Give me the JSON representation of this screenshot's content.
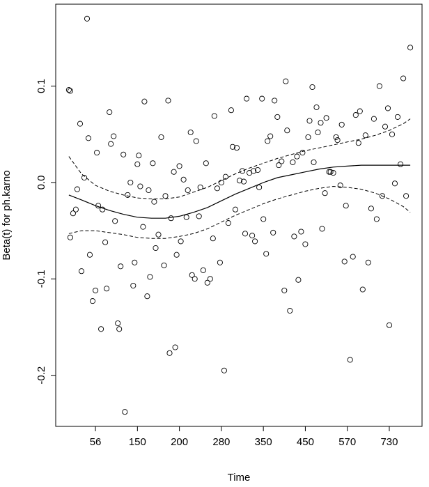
{
  "chart_data": {
    "type": "scatter",
    "xlabel": "Time",
    "ylabel": "Beta(t) for ph.karno",
    "x_ticks": [
      {
        "pos": 10,
        "label": "56"
      },
      {
        "pos": 25,
        "label": "150"
      },
      {
        "pos": 40,
        "label": "200"
      },
      {
        "pos": 55,
        "label": "280"
      },
      {
        "pos": 70,
        "label": "350"
      },
      {
        "pos": 85,
        "label": "450"
      },
      {
        "pos": 100,
        "label": "570"
      },
      {
        "pos": 115,
        "label": "730"
      }
    ],
    "y_ticks": [
      -0.2,
      -0.1,
      0.0,
      0.1
    ],
    "y_tick_labels": [
      "-0.2",
      "-0.1",
      "0.0",
      "0.1"
    ],
    "xlim": [
      -4.2,
      126.7
    ],
    "ylim": [
      -0.253,
      0.185
    ],
    "points": [
      [
        0.5,
        0.096
      ],
      [
        1,
        0.095
      ],
      [
        1,
        -0.057
      ],
      [
        2,
        -0.032
      ],
      [
        3,
        -0.028
      ],
      [
        3.5,
        -0.007
      ],
      [
        4.5,
        0.061
      ],
      [
        5,
        -0.092
      ],
      [
        6,
        0.005
      ],
      [
        7,
        0.17
      ],
      [
        7.5,
        0.046
      ],
      [
        8,
        -0.075
      ],
      [
        9,
        -0.123
      ],
      [
        10,
        -0.112
      ],
      [
        10.5,
        0.031
      ],
      [
        11,
        -0.024
      ],
      [
        12,
        -0.152
      ],
      [
        12.5,
        -0.028
      ],
      [
        13.5,
        -0.062
      ],
      [
        14,
        -0.11
      ],
      [
        15,
        0.073
      ],
      [
        15.5,
        0.04
      ],
      [
        16.5,
        0.048
      ],
      [
        17,
        -0.04
      ],
      [
        18,
        -0.146
      ],
      [
        18.5,
        -0.152
      ],
      [
        19,
        -0.087
      ],
      [
        20,
        0.029
      ],
      [
        20.5,
        -0.238
      ],
      [
        21.5,
        -0.013
      ],
      [
        22.5,
        0.0
      ],
      [
        23.5,
        -0.107
      ],
      [
        24,
        -0.083
      ],
      [
        25,
        0.019
      ],
      [
        25.5,
        0.028
      ],
      [
        26,
        -0.004
      ],
      [
        27,
        -0.046
      ],
      [
        27.5,
        0.084
      ],
      [
        28.5,
        -0.118
      ],
      [
        29,
        -0.008
      ],
      [
        29.5,
        -0.098
      ],
      [
        30.5,
        0.02
      ],
      [
        31,
        -0.02
      ],
      [
        31.5,
        -0.068
      ],
      [
        32.5,
        -0.054
      ],
      [
        33.5,
        0.047
      ],
      [
        34.5,
        -0.086
      ],
      [
        35,
        -0.014
      ],
      [
        36,
        0.085
      ],
      [
        36.5,
        -0.177
      ],
      [
        37,
        -0.037
      ],
      [
        38,
        0.011
      ],
      [
        38.5,
        -0.171
      ],
      [
        39,
        -0.075
      ],
      [
        40,
        0.017
      ],
      [
        40.5,
        -0.061
      ],
      [
        41.5,
        0.003
      ],
      [
        42.5,
        -0.036
      ],
      [
        43,
        -0.008
      ],
      [
        44,
        0.052
      ],
      [
        44.5,
        -0.096
      ],
      [
        45.5,
        -0.1
      ],
      [
        46,
        0.043
      ],
      [
        47,
        -0.035
      ],
      [
        47.5,
        -0.005
      ],
      [
        48.5,
        -0.091
      ],
      [
        49.5,
        0.02
      ],
      [
        50,
        -0.104
      ],
      [
        51,
        -0.1
      ],
      [
        52,
        -0.058
      ],
      [
        52.5,
        0.069
      ],
      [
        53.5,
        -0.006
      ],
      [
        54.5,
        -0.083
      ],
      [
        55,
        0.0
      ],
      [
        56,
        -0.195
      ],
      [
        56.5,
        0.006
      ],
      [
        57.5,
        -0.042
      ],
      [
        58.5,
        0.075
      ],
      [
        59,
        0.037
      ],
      [
        60,
        -0.028
      ],
      [
        60.5,
        0.036
      ],
      [
        61.5,
        0.002
      ],
      [
        62.5,
        0.012
      ],
      [
        63,
        0.001
      ],
      [
        63.5,
        -0.053
      ],
      [
        64,
        0.087
      ],
      [
        65,
        0.01
      ],
      [
        66,
        -0.055
      ],
      [
        66.5,
        0.012
      ],
      [
        67,
        -0.061
      ],
      [
        68,
        0.013
      ],
      [
        68.5,
        -0.005
      ],
      [
        69.5,
        0.087
      ],
      [
        70,
        -0.038
      ],
      [
        71,
        -0.074
      ],
      [
        71.5,
        0.043
      ],
      [
        72.5,
        0.048
      ],
      [
        73.5,
        -0.052
      ],
      [
        74,
        0.085
      ],
      [
        75,
        0.068
      ],
      [
        75.5,
        0.018
      ],
      [
        76.5,
        0.022
      ],
      [
        77.5,
        -0.112
      ],
      [
        78,
        0.105
      ],
      [
        78.5,
        0.054
      ],
      [
        79.5,
        -0.133
      ],
      [
        80.5,
        0.021
      ],
      [
        81,
        -0.056
      ],
      [
        82,
        0.027
      ],
      [
        82.5,
        -0.101
      ],
      [
        83.5,
        -0.051
      ],
      [
        84,
        0.031
      ],
      [
        85,
        -0.064
      ],
      [
        86,
        0.047
      ],
      [
        86.5,
        0.064
      ],
      [
        87.5,
        0.099
      ],
      [
        88,
        0.021
      ],
      [
        89,
        0.078
      ],
      [
        89.5,
        0.052
      ],
      [
        90.5,
        0.062
      ],
      [
        91,
        -0.048
      ],
      [
        92,
        -0.011
      ],
      [
        92.5,
        0.067
      ],
      [
        93.5,
        0.011
      ],
      [
        94,
        0.011
      ],
      [
        95,
        0.01
      ],
      [
        96,
        0.047
      ],
      [
        96.5,
        0.044
      ],
      [
        97.5,
        -0.003
      ],
      [
        98,
        0.06
      ],
      [
        99,
        -0.082
      ],
      [
        99.5,
        -0.024
      ],
      [
        101,
        -0.184
      ],
      [
        102,
        -0.077
      ],
      [
        103,
        0.07
      ],
      [
        104,
        0.041
      ],
      [
        104.5,
        0.074
      ],
      [
        105.5,
        -0.111
      ],
      [
        106.5,
        0.049
      ],
      [
        107.5,
        -0.083
      ],
      [
        108.5,
        -0.027
      ],
      [
        109.5,
        0.066
      ],
      [
        110.5,
        -0.038
      ],
      [
        111.5,
        0.1
      ],
      [
        112.5,
        -0.014
      ],
      [
        113.5,
        0.058
      ],
      [
        114.5,
        0.077
      ],
      [
        115,
        -0.148
      ],
      [
        116,
        0.05
      ],
      [
        117,
        -0.001
      ],
      [
        118,
        0.068
      ],
      [
        119,
        0.019
      ],
      [
        120,
        0.108
      ],
      [
        121,
        -0.014
      ],
      [
        122.5,
        0.14
      ]
    ],
    "fit": [
      [
        0.5,
        -0.013
      ],
      [
        5,
        -0.018
      ],
      [
        10,
        -0.024
      ],
      [
        15,
        -0.029
      ],
      [
        20,
        -0.033
      ],
      [
        25,
        -0.036
      ],
      [
        30,
        -0.037
      ],
      [
        35,
        -0.037
      ],
      [
        40,
        -0.035
      ],
      [
        45,
        -0.031
      ],
      [
        50,
        -0.026
      ],
      [
        55,
        -0.019
      ],
      [
        60,
        -0.012
      ],
      [
        65,
        -0.006
      ],
      [
        70,
        0.0
      ],
      [
        75,
        0.005
      ],
      [
        80,
        0.008
      ],
      [
        85,
        0.011
      ],
      [
        90,
        0.014
      ],
      [
        95,
        0.016
      ],
      [
        100,
        0.017
      ],
      [
        105,
        0.018
      ],
      [
        110,
        0.018
      ],
      [
        115,
        0.018
      ],
      [
        120,
        0.018
      ],
      [
        122.5,
        0.018
      ]
    ],
    "upper": [
      [
        0.5,
        0.027
      ],
      [
        5,
        0.009
      ],
      [
        10,
        -0.003
      ],
      [
        15,
        -0.009
      ],
      [
        20,
        -0.013
      ],
      [
        25,
        -0.016
      ],
      [
        30,
        -0.017
      ],
      [
        35,
        -0.017
      ],
      [
        40,
        -0.015
      ],
      [
        45,
        -0.01
      ],
      [
        50,
        -0.005
      ],
      [
        55,
        0.002
      ],
      [
        60,
        0.009
      ],
      [
        65,
        0.015
      ],
      [
        70,
        0.02
      ],
      [
        75,
        0.025
      ],
      [
        80,
        0.029
      ],
      [
        85,
        0.033
      ],
      [
        90,
        0.036
      ],
      [
        95,
        0.039
      ],
      [
        100,
        0.042
      ],
      [
        105,
        0.045
      ],
      [
        110,
        0.049
      ],
      [
        115,
        0.054
      ],
      [
        120,
        0.061
      ],
      [
        122.5,
        0.066
      ]
    ],
    "lower": [
      [
        0.5,
        -0.053
      ],
      [
        5,
        -0.05
      ],
      [
        10,
        -0.05
      ],
      [
        15,
        -0.052
      ],
      [
        20,
        -0.054
      ],
      [
        25,
        -0.057
      ],
      [
        30,
        -0.058
      ],
      [
        35,
        -0.058
      ],
      [
        40,
        -0.056
      ],
      [
        45,
        -0.053
      ],
      [
        50,
        -0.048
      ],
      [
        55,
        -0.041
      ],
      [
        60,
        -0.034
      ],
      [
        65,
        -0.028
      ],
      [
        70,
        -0.022
      ],
      [
        75,
        -0.017
      ],
      [
        80,
        -0.013
      ],
      [
        85,
        -0.009
      ],
      [
        90,
        -0.006
      ],
      [
        95,
        -0.004
      ],
      [
        100,
        -0.005
      ],
      [
        105,
        -0.007
      ],
      [
        110,
        -0.011
      ],
      [
        115,
        -0.017
      ],
      [
        120,
        -0.025
      ],
      [
        122.5,
        -0.031
      ]
    ]
  }
}
